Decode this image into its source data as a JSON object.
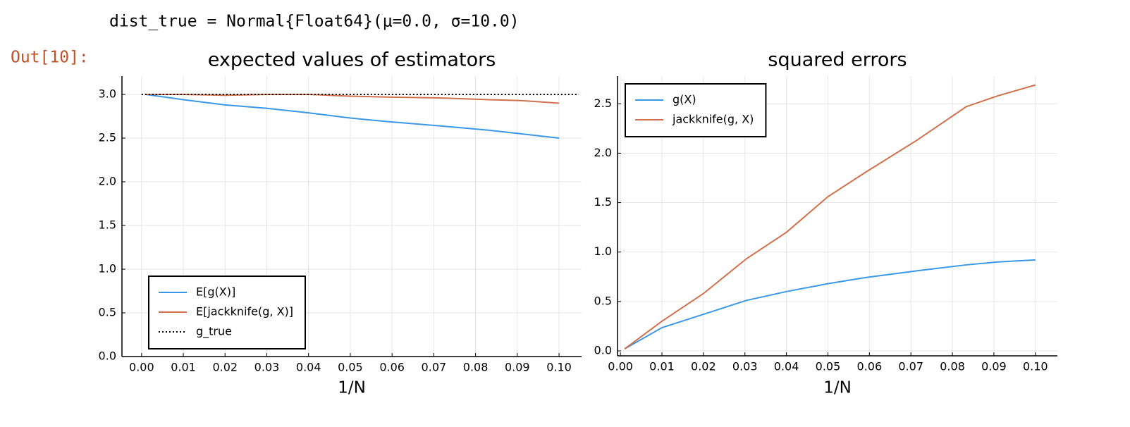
{
  "code": "dist_true = Normal{Float64}(μ=0.0, σ=10.0)",
  "prompt": "Out[10]:",
  "chart_data": [
    {
      "type": "line",
      "title": "expected values of estimators",
      "xlabel": "1/N",
      "x": [
        0.001,
        0.01,
        0.02,
        0.0303,
        0.04,
        0.05,
        0.0588,
        0.0714,
        0.0833,
        0.0909,
        0.1
      ],
      "series": [
        {
          "name": "E[g(X)]",
          "color": "#3a98e6",
          "values": [
            3.0,
            2.94,
            2.88,
            2.84,
            2.79,
            2.73,
            2.69,
            2.64,
            2.59,
            2.55,
            2.5
          ]
        },
        {
          "name": "E[jackknife(g, X)]",
          "color": "#d0704c",
          "values": [
            3.0,
            3.0,
            2.99,
            3.0,
            3.0,
            2.98,
            2.97,
            2.96,
            2.94,
            2.93,
            2.9
          ]
        }
      ],
      "hline": {
        "name": "g_true",
        "color": "#000000",
        "value": 3.0
      },
      "xlim": [
        -0.0047,
        0.1054
      ],
      "ylim": [
        0,
        3.21
      ],
      "xticks": [
        {
          "value": 0,
          "label": "0.00"
        },
        {
          "value": 0.01,
          "label": "0.01"
        },
        {
          "value": 0.02,
          "label": "0.02"
        },
        {
          "value": 0.03,
          "label": "0.03"
        },
        {
          "value": 0.04,
          "label": "0.04"
        },
        {
          "value": 0.05,
          "label": "0.05"
        },
        {
          "value": 0.06,
          "label": "0.06"
        },
        {
          "value": 0.07,
          "label": "0.07"
        },
        {
          "value": 0.08,
          "label": "0.08"
        },
        {
          "value": 0.09,
          "label": "0.09"
        },
        {
          "value": 0.1,
          "label": "0.10"
        }
      ],
      "yticks": [
        {
          "value": 0,
          "label": "0.0"
        },
        {
          "value": 0.5,
          "label": "0.5"
        },
        {
          "value": 1,
          "label": "1.0"
        },
        {
          "value": 1.5,
          "label": "1.5"
        },
        {
          "value": 2,
          "label": "2.0"
        },
        {
          "value": 2.5,
          "label": "2.5"
        },
        {
          "value": 3,
          "label": "3.0"
        }
      ],
      "grid": true,
      "legend": "bottom left"
    },
    {
      "type": "line",
      "title": "squared errors",
      "xlabel": "1/N",
      "x": [
        0.001,
        0.01,
        0.02,
        0.0303,
        0.04,
        0.05,
        0.0588,
        0.0714,
        0.0833,
        0.0909,
        0.1
      ],
      "series": [
        {
          "name": "g(X)",
          "color": "#3a98e6",
          "values": [
            0.02,
            0.235,
            0.37,
            0.51,
            0.6,
            0.68,
            0.74,
            0.81,
            0.87,
            0.9,
            0.92
          ]
        },
        {
          "name": "jackknife(g, X)",
          "color": "#d0704c",
          "values": [
            0.02,
            0.3,
            0.58,
            0.93,
            1.2,
            1.56,
            1.8,
            2.13,
            2.47,
            2.58,
            2.69
          ]
        }
      ],
      "xlim": [
        -0.0007,
        0.1053
      ],
      "ylim": [
        -0.05,
        2.78
      ],
      "xticks": [
        {
          "value": 0,
          "label": "0.00"
        },
        {
          "value": 0.01,
          "label": "0.01"
        },
        {
          "value": 0.02,
          "label": "0.02"
        },
        {
          "value": 0.03,
          "label": "0.03"
        },
        {
          "value": 0.04,
          "label": "0.04"
        },
        {
          "value": 0.05,
          "label": "0.05"
        },
        {
          "value": 0.06,
          "label": "0.06"
        },
        {
          "value": 0.07,
          "label": "0.07"
        },
        {
          "value": 0.08,
          "label": "0.08"
        },
        {
          "value": 0.09,
          "label": "0.09"
        },
        {
          "value": 0.1,
          "label": "0.10"
        }
      ],
      "yticks": [
        {
          "value": 0,
          "label": "0.0"
        },
        {
          "value": 0.5,
          "label": "0.5"
        },
        {
          "value": 1,
          "label": "1.0"
        },
        {
          "value": 1.5,
          "label": "1.5"
        },
        {
          "value": 2,
          "label": "2.0"
        },
        {
          "value": 2.5,
          "label": "2.5"
        }
      ],
      "grid": true,
      "legend": "top left"
    }
  ]
}
